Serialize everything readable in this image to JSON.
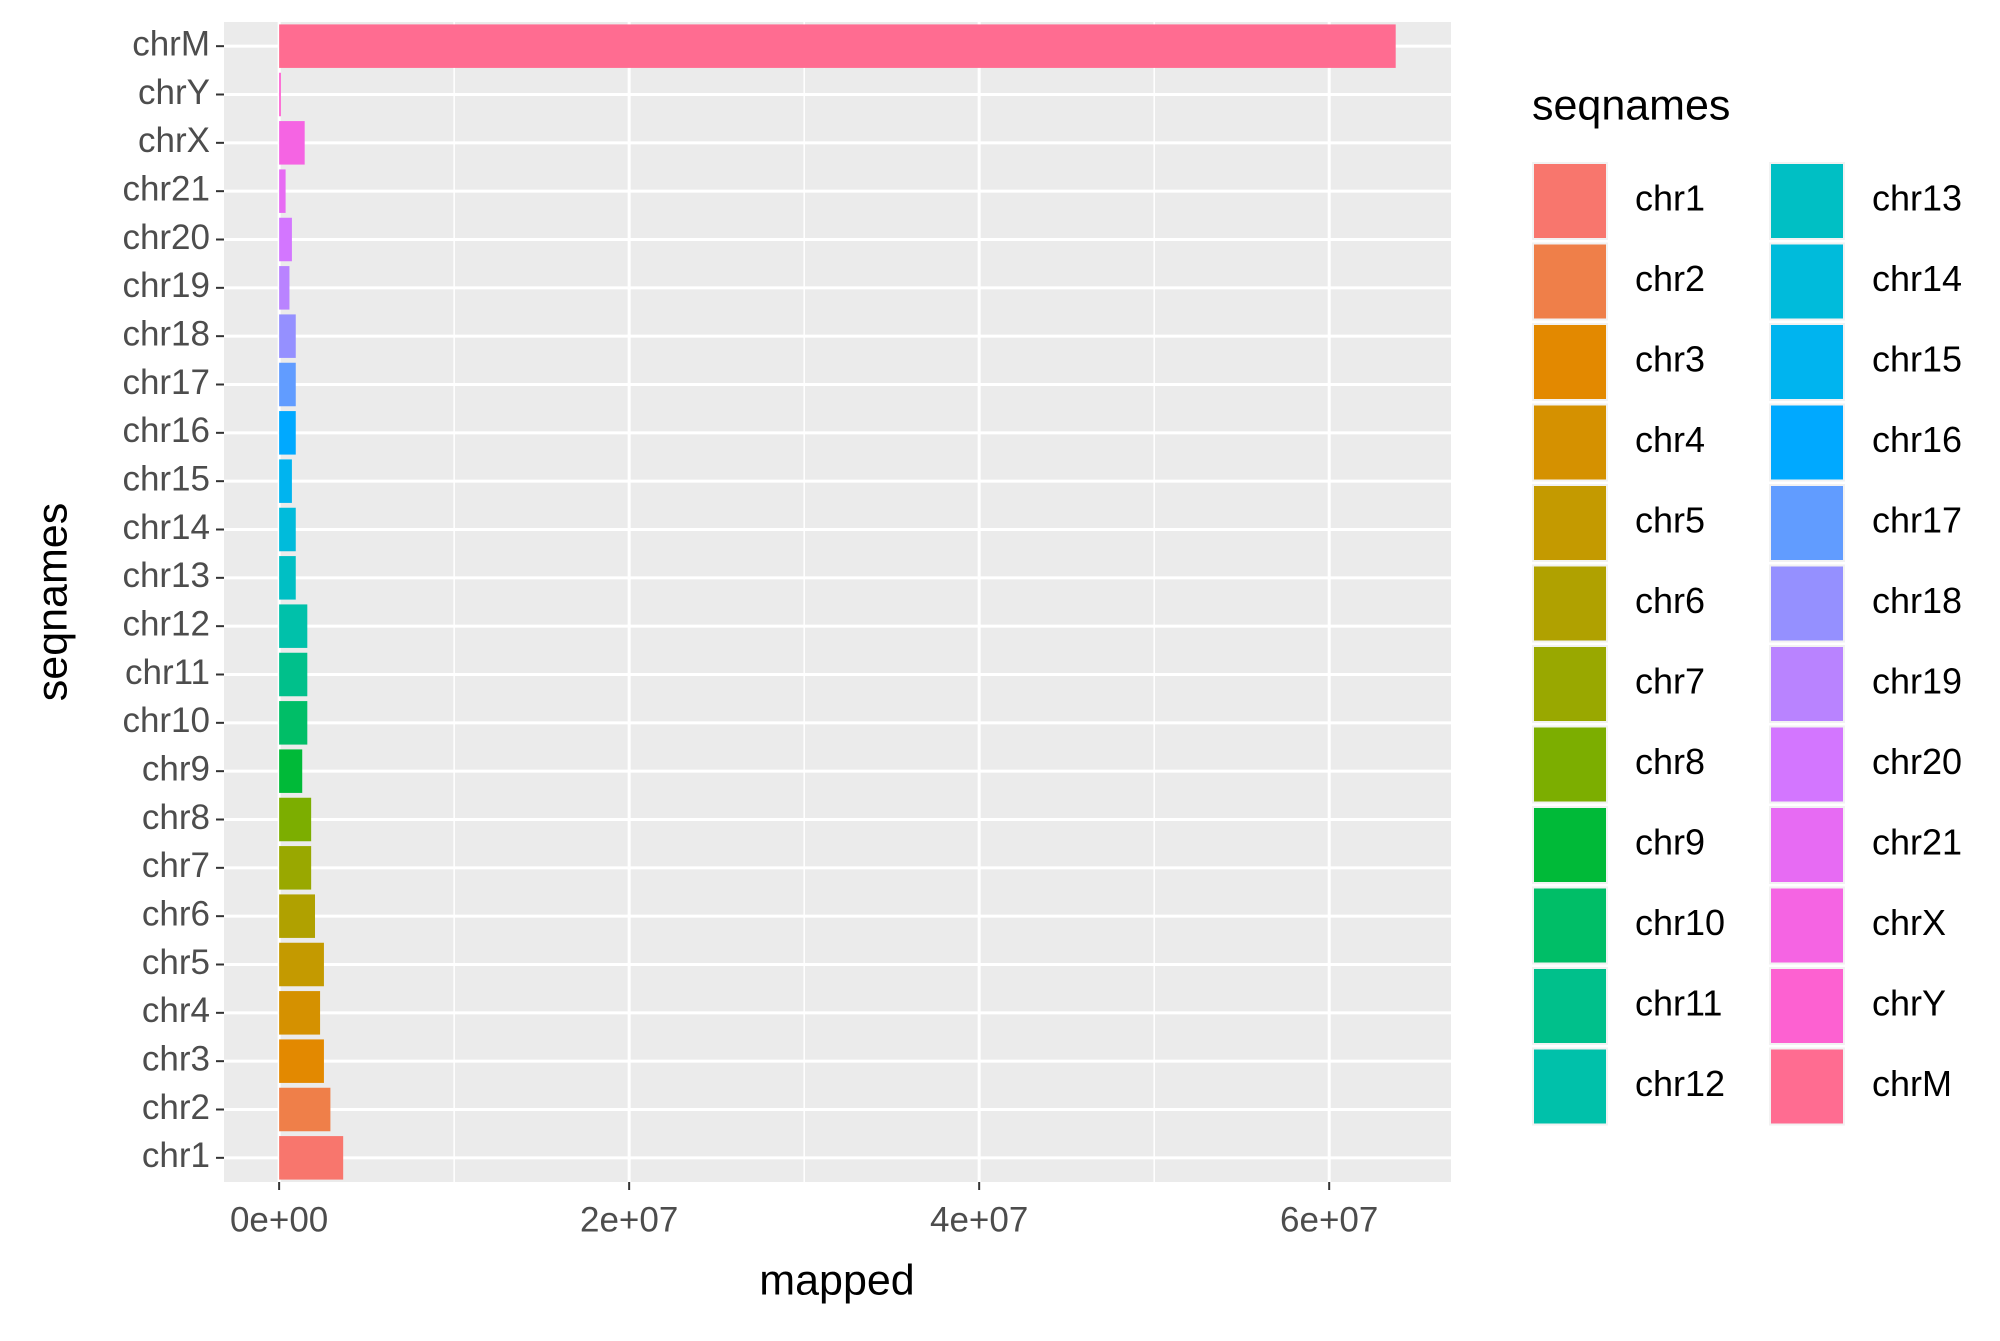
{
  "chart_data": {
    "type": "barh",
    "x_label": "mapped",
    "y_label": "seqnames",
    "legend_title": "seqnames",
    "categories": [
      "chr1",
      "chr2",
      "chr3",
      "chr4",
      "chr5",
      "chr6",
      "chr7",
      "chr8",
      "chr9",
      "chr10",
      "chr11",
      "chr12",
      "chr13",
      "chr14",
      "chr15",
      "chr16",
      "chr17",
      "chr18",
      "chr19",
      "chr20",
      "chr21",
      "chrX",
      "chrY",
      "chrM"
    ],
    "values": [
      3660000,
      2930000,
      2560000,
      2340000,
      2560000,
      2050000,
      1830000,
      1830000,
      1320000,
      1610000,
      1610000,
      1610000,
      950000,
      950000,
      730000,
      950000,
      950000,
      950000,
      590000,
      730000,
      370000,
      1460000,
      100000,
      63800000
    ],
    "colors": [
      "#F8766D",
      "#EF7F49",
      "#E38900",
      "#D59100",
      "#C49A00",
      "#B0A100",
      "#99A800",
      "#7CAE00",
      "#00BA38",
      "#00BE67",
      "#00C08B",
      "#00C1AA",
      "#00BFC4",
      "#00BBDB",
      "#00B4EF",
      "#00A9FF",
      "#619CFF",
      "#9590FF",
      "#B983FF",
      "#D376FF",
      "#E76BF3",
      "#F564E3",
      "#FD61D1",
      "#FF6C91"
    ],
    "xlim": [
      -3150000,
      66960000
    ],
    "xticks": [
      {
        "value": 0,
        "label": "0e+00"
      },
      {
        "value": 20000000,
        "label": "2e+07"
      },
      {
        "value": 40000000,
        "label": "4e+07"
      },
      {
        "value": 60000000,
        "label": "6e+07"
      }
    ],
    "grid": true,
    "legend_position": "right",
    "legend_columns": 2
  }
}
